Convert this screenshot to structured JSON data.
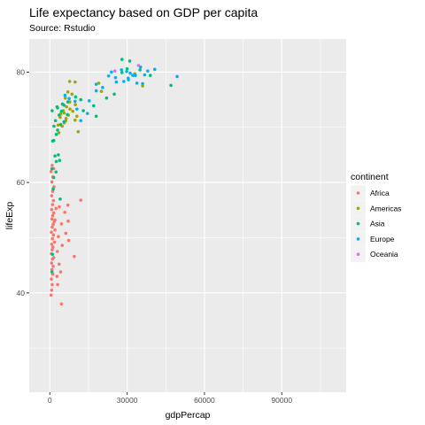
{
  "chart_data": {
    "type": "scatter",
    "title": "Life expectancy based on GDP per capita",
    "subtitle": "Source: Rstudio",
    "xlabel": "gdpPercap",
    "ylabel": "lifeExp",
    "xlim": [
      -8000,
      115000
    ],
    "ylim": [
      22,
      86
    ],
    "x_ticks": [
      0,
      30000,
      60000,
      90000
    ],
    "x_tick_labels": [
      "0",
      "30000",
      "60000",
      "90000"
    ],
    "y_ticks": [
      40,
      60,
      80
    ],
    "y_tick_labels": [
      "40",
      "60",
      "80"
    ],
    "grid": true,
    "legend": {
      "title": "continent",
      "position": "right",
      "entries": [
        {
          "name": "Africa",
          "color": "#F8766D"
        },
        {
          "name": "Americas",
          "color": "#A3A500"
        },
        {
          "name": "Asia",
          "color": "#00BF7D"
        },
        {
          "name": "Europe",
          "color": "#00B0F6"
        },
        {
          "name": "Oceania",
          "color": "#E76BF3"
        }
      ]
    },
    "series": [
      {
        "name": "Africa",
        "color": "#F8766D",
        "points": [
          [
            500,
            39.6
          ],
          [
            700,
            40.5
          ],
          [
            900,
            41.5
          ],
          [
            600,
            42.5
          ],
          [
            1100,
            43.4
          ],
          [
            800,
            44.2
          ],
          [
            1300,
            44.8
          ],
          [
            700,
            45.4
          ],
          [
            1000,
            46.1
          ],
          [
            1500,
            46.4
          ],
          [
            600,
            47.1
          ],
          [
            900,
            47.8
          ],
          [
            1200,
            48.3
          ],
          [
            700,
            48.8
          ],
          [
            1800,
            49.2
          ],
          [
            1000,
            49.8
          ],
          [
            1400,
            50.5
          ],
          [
            600,
            51.0
          ],
          [
            2000,
            51.4
          ],
          [
            900,
            51.9
          ],
          [
            1300,
            52.4
          ],
          [
            1700,
            52.9
          ],
          [
            800,
            53.4
          ],
          [
            1100,
            54.0
          ],
          [
            1500,
            54.5
          ],
          [
            700,
            55.1
          ],
          [
            2400,
            55.3
          ],
          [
            1000,
            56.0
          ],
          [
            1400,
            56.7
          ],
          [
            700,
            57.6
          ],
          [
            1100,
            58.4
          ],
          [
            1600,
            59.2
          ],
          [
            800,
            60.1
          ],
          [
            1200,
            61.0
          ],
          [
            500,
            62.0
          ],
          [
            1500,
            62.5
          ],
          [
            900,
            63.1
          ],
          [
            3000,
            41.5
          ],
          [
            2800,
            43.0
          ],
          [
            4200,
            43.8
          ],
          [
            3600,
            45.2
          ],
          [
            2900,
            47.5
          ],
          [
            4800,
            48.6
          ],
          [
            3300,
            50.2
          ],
          [
            6200,
            50.8
          ],
          [
            4500,
            52.5
          ],
          [
            7100,
            53.0
          ],
          [
            5800,
            54.6
          ],
          [
            3700,
            55.6
          ],
          [
            7000,
            55.9
          ],
          [
            7300,
            49.5
          ],
          [
            9500,
            46.6
          ],
          [
            12000,
            56.8
          ],
          [
            4500,
            38.0
          ],
          [
            2000,
            53.2
          ]
        ]
      },
      {
        "name": "Americas",
        "color": "#A3A500",
        "points": [
          [
            3500,
            69.0
          ],
          [
            4800,
            70.2
          ],
          [
            5600,
            70.8
          ],
          [
            6200,
            71.2
          ],
          [
            4000,
            71.8
          ],
          [
            7200,
            72.2
          ],
          [
            5500,
            72.6
          ],
          [
            8900,
            72.9
          ],
          [
            7800,
            73.3
          ],
          [
            6500,
            73.7
          ],
          [
            9900,
            74.1
          ],
          [
            7700,
            74.6
          ],
          [
            6000,
            75.3
          ],
          [
            8600,
            76.0
          ],
          [
            7000,
            76.4
          ],
          [
            5200,
            73.0
          ],
          [
            10500,
            72.0
          ],
          [
            11000,
            69.2
          ],
          [
            3200,
            70.4
          ],
          [
            9800,
            71.3
          ],
          [
            7700,
            78.3
          ],
          [
            9800,
            78.2
          ],
          [
            19000,
            78.0
          ],
          [
            36000,
            77.5
          ],
          [
            33000,
            79.7
          ],
          [
            20000,
            76.5
          ],
          [
            4200,
            72.4
          ],
          [
            6300,
            71.6
          ]
        ]
      },
      {
        "name": "Asia",
        "color": "#00BF7D",
        "points": [
          [
            800,
            43.8
          ],
          [
            1000,
            47.0
          ],
          [
            800,
            62.5
          ],
          [
            2500,
            63.8
          ],
          [
            3300,
            65.0
          ],
          [
            1100,
            67.5
          ],
          [
            2500,
            68.7
          ],
          [
            3000,
            69.5
          ],
          [
            1600,
            70.2
          ],
          [
            2200,
            71.2
          ],
          [
            3600,
            72.2
          ],
          [
            4500,
            72.9
          ],
          [
            3000,
            73.5
          ],
          [
            4900,
            74.2
          ],
          [
            7000,
            74.6
          ],
          [
            10000,
            75.5
          ],
          [
            12000,
            75.0
          ],
          [
            17000,
            73.9
          ],
          [
            22000,
            75.3
          ],
          [
            25000,
            76.0
          ],
          [
            28000,
            79.9
          ],
          [
            30000,
            80.6
          ],
          [
            31000,
            82.0
          ],
          [
            39000,
            79.4
          ],
          [
            47000,
            77.6
          ],
          [
            28000,
            82.3
          ],
          [
            13000,
            73.0
          ],
          [
            5500,
            71.0
          ],
          [
            2000,
            64.8
          ],
          [
            4000,
            57.0
          ],
          [
            1300,
            58.8
          ],
          [
            1500,
            60.9
          ],
          [
            2400,
            61.9
          ],
          [
            3800,
            64.0
          ],
          [
            900,
            73.0
          ],
          [
            5500,
            74.0
          ],
          [
            4200,
            70.5
          ],
          [
            18000,
            72.0
          ],
          [
            35000,
            80.4
          ],
          [
            1500,
            67.6
          ],
          [
            2800,
            73.7
          ],
          [
            6800,
            72.3
          ]
        ]
      },
      {
        "name": "Europe",
        "color": "#00B0F6",
        "points": [
          [
            5900,
            75.8
          ],
          [
            7500,
            75.2
          ],
          [
            9800,
            74.7
          ],
          [
            10500,
            73.3
          ],
          [
            12000,
            71.2
          ],
          [
            14600,
            72.5
          ],
          [
            15300,
            74.8
          ],
          [
            18000,
            76.6
          ],
          [
            18000,
            77.8
          ],
          [
            20500,
            77.2
          ],
          [
            22800,
            79.3
          ],
          [
            23900,
            80.0
          ],
          [
            25500,
            79.0
          ],
          [
            27800,
            80.4
          ],
          [
            29800,
            80.1
          ],
          [
            30500,
            78.6
          ],
          [
            31200,
            79.8
          ],
          [
            33200,
            79.4
          ],
          [
            33800,
            78.0
          ],
          [
            35200,
            80.9
          ],
          [
            36800,
            79.5
          ],
          [
            38000,
            80.2
          ],
          [
            28700,
            78.3
          ],
          [
            30400,
            78.9
          ],
          [
            32200,
            79.4
          ],
          [
            40700,
            80.5
          ],
          [
            49400,
            79.2
          ],
          [
            36000,
            77.9
          ],
          [
            25800,
            78.2
          ]
        ]
      },
      {
        "name": "Oceania",
        "color": "#E76BF3",
        "points": [
          [
            34400,
            81.2
          ],
          [
            25200,
            80.2
          ]
        ]
      }
    ]
  }
}
